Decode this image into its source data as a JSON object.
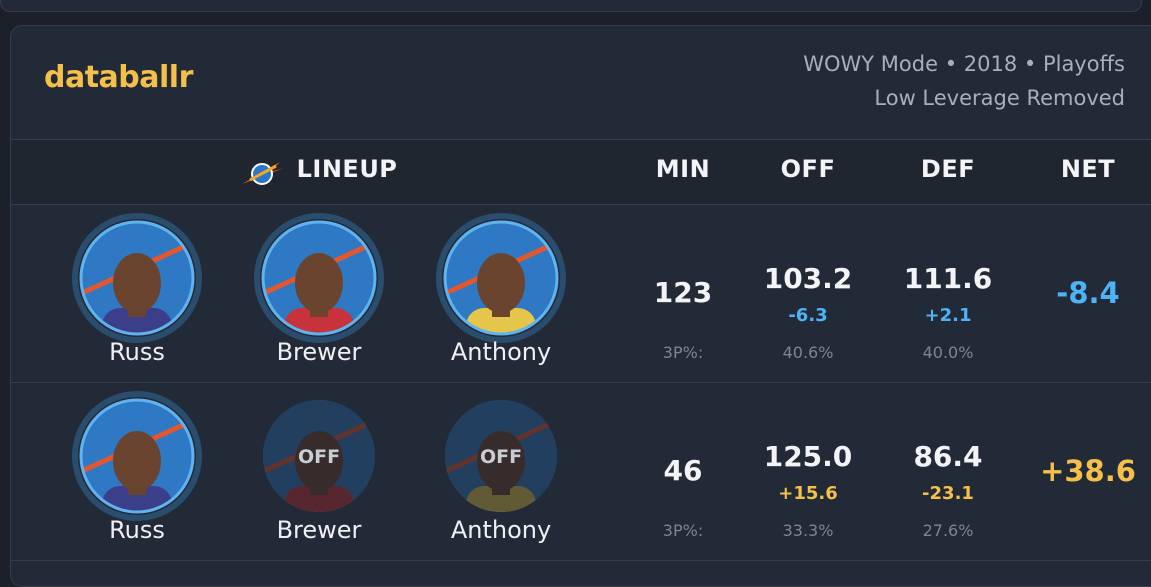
{
  "header": {
    "brand": "databallr",
    "mode": "WOWY Mode • 2018 • Playoffs",
    "filter": "Low Leverage Removed"
  },
  "columns": {
    "lineup": "LINEUP",
    "min": "MIN",
    "off": "OFF",
    "def": "DEF",
    "net": "NET"
  },
  "rows": [
    {
      "players": [
        {
          "name": "Russ"
        },
        {
          "name": "Brewer"
        },
        {
          "name": "Anthony"
        }
      ],
      "min": "123",
      "three_label": "3P%:",
      "off": {
        "value": "103.2",
        "diff": "-6.3",
        "diff_color": "#4db3f5",
        "three": "40.6%"
      },
      "def": {
        "value": "111.6",
        "diff": "+2.1",
        "diff_color": "#4db3f5",
        "three": "40.0%"
      },
      "net": {
        "value": "-8.4",
        "color": "#4db3f5"
      }
    },
    {
      "players": [
        {
          "name": "Russ"
        },
        {
          "name": "Brewer",
          "status": "OFF"
        },
        {
          "name": "Anthony",
          "status": "OFF"
        }
      ],
      "min": "46",
      "three_label": "3P%:",
      "off": {
        "value": "125.0",
        "diff": "+15.6",
        "diff_color": "#f5c04a",
        "three": "33.3%"
      },
      "def": {
        "value": "86.4",
        "diff": "-23.1",
        "diff_color": "#f5c04a",
        "three": "27.6%"
      },
      "net": {
        "value": "+38.6",
        "color": "#f5c04a"
      }
    }
  ]
}
